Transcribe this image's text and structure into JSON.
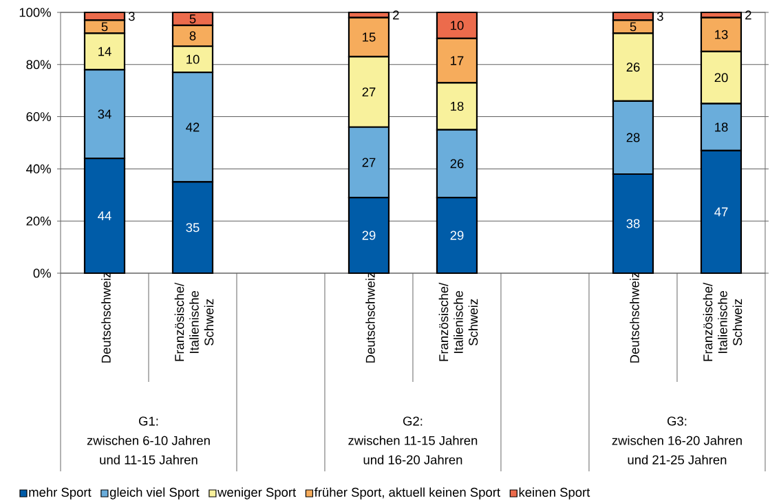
{
  "chart_data": {
    "type": "bar",
    "stacked": true,
    "categories": [
      "Deutschschweiz",
      "Französische/ Italienische Schweiz",
      null,
      "Deutschschweiz",
      "Französische/ Italienische Schweiz",
      null,
      "Deutschschweiz",
      "Französische/ Italienische Schweiz"
    ],
    "series": [
      {
        "name": "mehr Sport",
        "color": "#005ca8",
        "values": [
          44,
          35,
          null,
          29,
          29,
          null,
          38,
          47
        ]
      },
      {
        "name": "gleich viel Sport",
        "color": "#6aaddb",
        "values": [
          34,
          42,
          null,
          27,
          26,
          null,
          28,
          18
        ]
      },
      {
        "name": "weniger Sport",
        "color": "#f8f19c",
        "values": [
          14,
          10,
          null,
          27,
          18,
          null,
          26,
          20
        ]
      },
      {
        "name": "früher Sport, aktuell keinen Sport",
        "color": "#f6ac5c",
        "values": [
          5,
          8,
          null,
          15,
          17,
          null,
          5,
          13
        ]
      },
      {
        "name": "keinen Sport",
        "color": "#ec6b4c",
        "values": [
          3,
          5,
          null,
          2,
          10,
          null,
          3,
          2
        ]
      }
    ],
    "ylim": [
      0,
      100
    ],
    "yticks": [
      {
        "value": 0,
        "label": "0%"
      },
      {
        "value": 20,
        "label": "20%"
      },
      {
        "value": 40,
        "label": "40%"
      },
      {
        "value": 60,
        "label": "60%"
      },
      {
        "value": 80,
        "label": "80%"
      },
      {
        "value": 100,
        "label": "100%"
      }
    ],
    "grid": "y",
    "legend": "bottom",
    "data_labels": true,
    "annotations": [
      "G1:",
      "zwischen 6-10 Jahren",
      "und 11-15 Jahren",
      "G2:",
      "zwischen 11-15 Jahren",
      "und 16-20 Jahren",
      "G3:",
      "zwischen 16-20 Jahren",
      "und 21-25 Jahren"
    ]
  }
}
